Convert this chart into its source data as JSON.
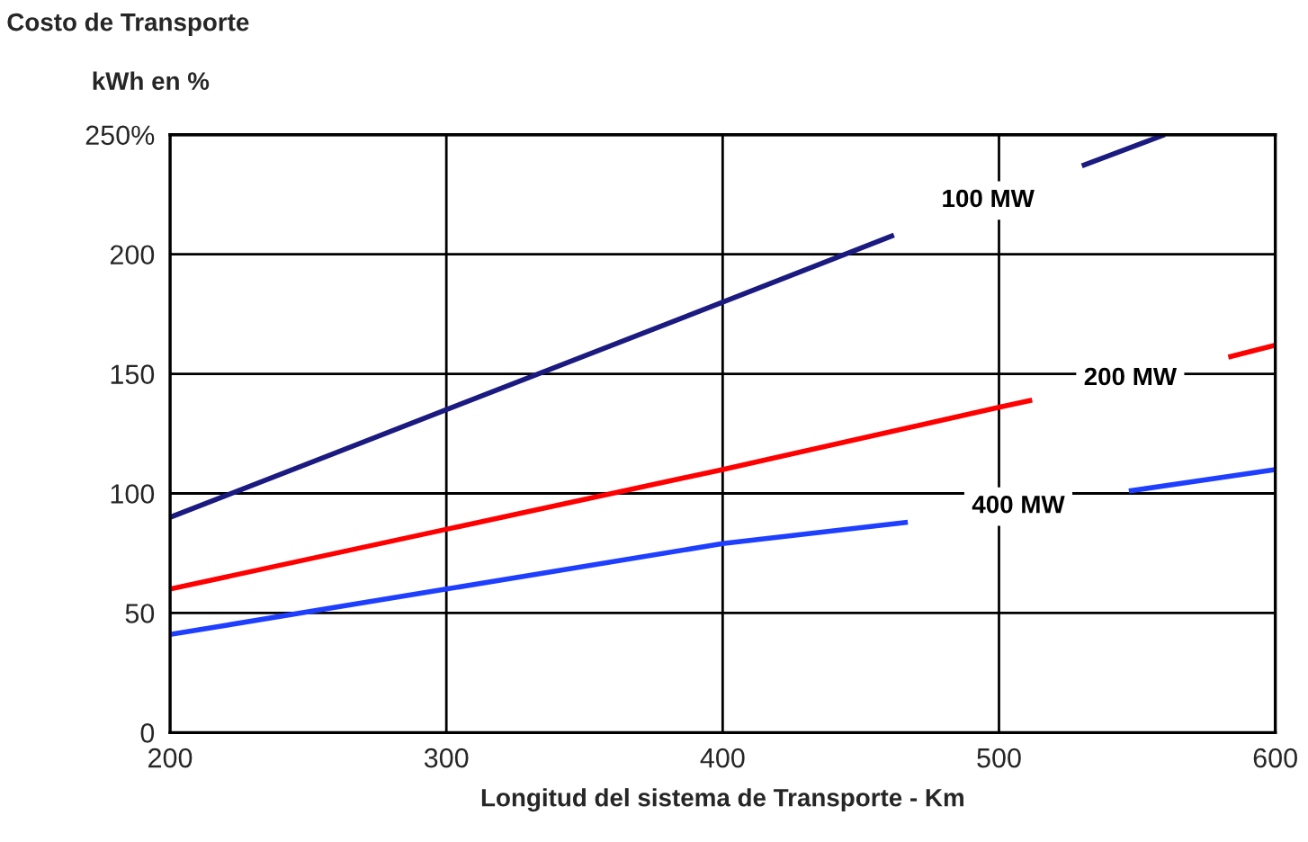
{
  "chart_data": {
    "type": "line",
    "title": "Costo de Transporte",
    "ylabel": "kWh en %",
    "xlabel": "Longitud del sistema de Transporte - Km",
    "series": [
      {
        "name": "100 MW",
        "color": "#1a1a80",
        "x": [
          200,
          300,
          400,
          462,
          500,
          530,
          560
        ],
        "values": [
          90,
          135,
          180,
          208,
          null,
          237,
          250
        ]
      },
      {
        "name": "200 MW",
        "color": "#ff0000",
        "x": [
          200,
          300,
          400,
          500,
          512,
          550,
          583,
          600
        ],
        "values": [
          60,
          85,
          110,
          136,
          139,
          null,
          157,
          162
        ]
      },
      {
        "name": "400 MW",
        "color": "#1f3fff",
        "x": [
          200,
          300,
          400,
          467,
          510,
          547,
          600
        ],
        "values": [
          41,
          60,
          79,
          88,
          null,
          101,
          110
        ]
      }
    ],
    "xlim": [
      200,
      600
    ],
    "xticks": [
      200,
      300,
      400,
      500,
      600
    ],
    "ylim": [
      0,
      250
    ],
    "yticks": [
      0,
      50,
      100,
      150,
      200,
      {
        "value": 250,
        "label": "250%"
      }
    ],
    "grid": true,
    "legend": false,
    "line_style": "solid",
    "marker": "none"
  }
}
